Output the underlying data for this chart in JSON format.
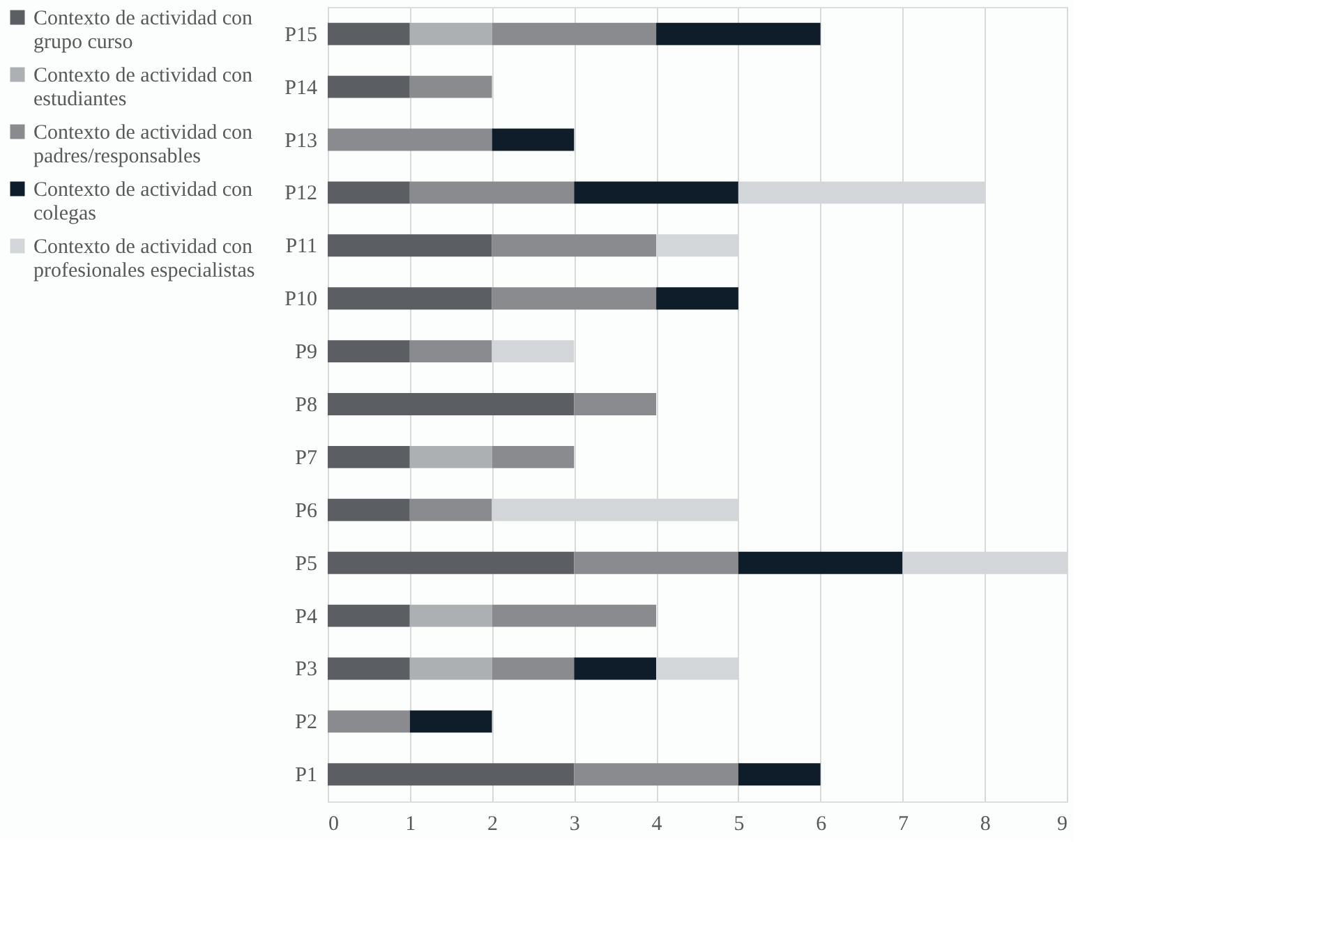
{
  "chart_data": {
    "type": "bar",
    "orientation": "horizontal",
    "stacked": true,
    "categories": [
      "P15",
      "P14",
      "P13",
      "P12",
      "P11",
      "P10",
      "P9",
      "P8",
      "P7",
      "P6",
      "P5",
      "P4",
      "P3",
      "P2",
      "P1"
    ],
    "series": [
      {
        "name": "Contexto de actividad con grupo curso",
        "color": "#5b5f64",
        "values": [
          1,
          1,
          null,
          1,
          2,
          2,
          1,
          3,
          1,
          1,
          3,
          1,
          1,
          null,
          3
        ]
      },
      {
        "name": "Contexto de actividad con estudiantes",
        "color": "#adb0b3",
        "values": [
          1,
          null,
          null,
          null,
          null,
          null,
          null,
          null,
          1,
          null,
          null,
          1,
          1,
          null,
          null
        ]
      },
      {
        "name": "Contexto de actividad con padres/responsables",
        "color": "#898b8f",
        "values": [
          2,
          1,
          2,
          2,
          2,
          2,
          1,
          1,
          1,
          1,
          2,
          2,
          1,
          1,
          2
        ]
      },
      {
        "name": "Contexto de actividad con colegas",
        "color": "#0f1c29",
        "values": [
          2,
          null,
          1,
          2,
          null,
          1,
          null,
          null,
          null,
          null,
          2,
          null,
          1,
          1,
          1
        ]
      },
      {
        "name": "Contexto de actividad con profesionales especialistas",
        "color": "#d3d6d9",
        "values": [
          null,
          null,
          null,
          3,
          1,
          null,
          1,
          null,
          null,
          3,
          2,
          null,
          1,
          null,
          null
        ]
      }
    ],
    "xlim": [
      0,
      9
    ],
    "xticks": [
      0,
      1,
      2,
      3,
      4,
      5,
      6,
      7,
      8,
      9
    ],
    "grid": "x",
    "legend": "left"
  }
}
